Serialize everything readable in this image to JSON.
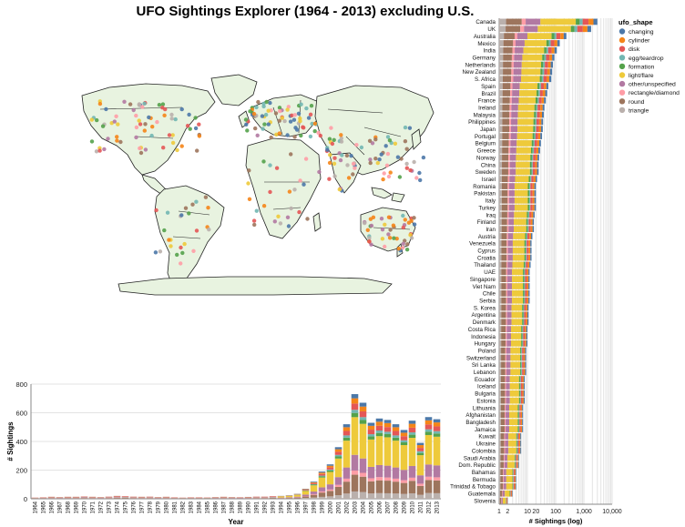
{
  "title": "UFO Sightings Explorer (1964 - 2013) excluding U.S.",
  "shape_colors": {
    "changing": "#4c78a8",
    "cylinder": "#f58518",
    "disk": "#e45756",
    "egg/teardrop": "#72b7b2",
    "formation": "#54a24b",
    "light/flare": "#eeca3b",
    "other/unspecified": "#b279a2",
    "rectangle/diamond": "#ff9da6",
    "round": "#9d755d",
    "triangle": "#bab0ac"
  },
  "map": {
    "land_color": "#e8f3e0",
    "border_color": "#222222"
  },
  "chart_data": [
    {
      "id": "by-year",
      "type": "bar",
      "stacked": true,
      "xlabel": "Year",
      "ylabel": "# Sightings",
      "ylim": [
        0,
        800
      ],
      "yticks": [
        "0",
        "200",
        "400",
        "600",
        "800"
      ],
      "categories": [
        "1964",
        "1965",
        "1966",
        "1967",
        "1968",
        "1969",
        "1970",
        "1971",
        "1972",
        "1973",
        "1974",
        "1975",
        "1976",
        "1977",
        "1978",
        "1979",
        "1980",
        "1981",
        "1982",
        "1983",
        "1984",
        "1985",
        "1986",
        "1987",
        "1988",
        "1989",
        "1990",
        "1991",
        "1992",
        "1993",
        "1994",
        "1995",
        "1996",
        "1997",
        "1998",
        "1999",
        "2000",
        "2001",
        "2002",
        "2003",
        "2004",
        "2005",
        "2006",
        "2007",
        "2008",
        "2009",
        "2010",
        "2011",
        "2012",
        "2013"
      ],
      "xticks": [
        "1964",
        "1965",
        "1966",
        "1967",
        "1968",
        "1969",
        "1970",
        "1971",
        "1972",
        "1973",
        "1974",
        "1975",
        "1976",
        "1977",
        "1978",
        "1979",
        "1980",
        "1981",
        "1982",
        "1983",
        "1984",
        "1985",
        "1986",
        "1987",
        "1988",
        "1989",
        "1990",
        "1991",
        "1992",
        "1993",
        "1994",
        "1995",
        "1996",
        "1997",
        "1998",
        "1999",
        "2000",
        "2001",
        "2002",
        "2003",
        "2004",
        "2005",
        "2006",
        "2007",
        "2008",
        "2009",
        "2010",
        "2011",
        "2012",
        "2013"
      ],
      "totals": [
        8,
        10,
        14,
        12,
        14,
        14,
        16,
        14,
        12,
        15,
        20,
        18,
        15,
        14,
        15,
        12,
        14,
        10,
        8,
        10,
        10,
        9,
        12,
        14,
        12,
        11,
        13,
        15,
        15,
        18,
        20,
        25,
        35,
        70,
        120,
        190,
        240,
        360,
        520,
        730,
        670,
        530,
        560,
        550,
        520,
        480,
        545,
        390,
        570,
        555
      ],
      "composition": {
        "triangle": 0.07,
        "round": 0.16,
        "rectangle/diamond": 0.04,
        "other/unspecified": 0.15,
        "light/flare": 0.36,
        "formation": 0.04,
        "egg/teardrop": 0.03,
        "disk": 0.06,
        "cylinder": 0.05,
        "changing": 0.04
      },
      "early_composition": {
        "triangle": 0.15,
        "round": 0.2,
        "rectangle/diamond": 0.05,
        "other/unspecified": 0.2,
        "light/flare": 0.05,
        "formation": 0.03,
        "egg/teardrop": 0.05,
        "disk": 0.22,
        "cylinder": 0.03,
        "changing": 0.02
      }
    },
    {
      "id": "by-country",
      "type": "bar",
      "orientation": "horizontal",
      "stacked": true,
      "xlabel": "# Sightings (log)",
      "xscale": "log",
      "xlim": [
        1,
        10000
      ],
      "xticks": [
        "1",
        "2",
        "10",
        "20",
        "100",
        "1,000",
        "10,000"
      ],
      "legend": {
        "title": "ufo_shape",
        "position": "right"
      },
      "categories": [
        "Canada",
        "UK",
        "Australia",
        "Mexico",
        "India",
        "Germany",
        "Netherlands",
        "New Zealand",
        "S. Africa",
        "Spain",
        "Brazil",
        "France",
        "Ireland",
        "Malaysia",
        "Philippines",
        "Japan",
        "Portugal",
        "Belgium",
        "Greece",
        "Norway",
        "China",
        "Sweden",
        "Israel",
        "Romania",
        "Pakistan",
        "Italy",
        "Turkey",
        "Iraq",
        "Finland",
        "Iran",
        "Austria",
        "Venezuela",
        "Cyprus",
        "Croatia",
        "Thailand",
        "UAE",
        "Singapore",
        "Viet Nam",
        "Chile",
        "Serbia",
        "S. Korea",
        "Argentina",
        "Denmark",
        "Costa Rica",
        "Indonesia",
        "Hungary",
        "Poland",
        "Switzerland",
        "Sri Lanka",
        "Lebanon",
        "Ecuador",
        "Iceland",
        "Bulgaria",
        "Estonia",
        "Lithuania",
        "Afghanistan",
        "Bangladesh",
        "Jamaica",
        "Kuwait",
        "Ukraine",
        "Colombia",
        "Saudi Arabia",
        "Dom. Republic",
        "Bahamas",
        "Bermuda",
        "Trinidad & Tobago",
        "Guatemala",
        "Slovenia"
      ],
      "values": [
        3000,
        1800,
        240,
        140,
        110,
        90,
        80,
        75,
        70,
        55,
        50,
        45,
        40,
        38,
        36,
        35,
        33,
        30,
        28,
        26,
        25,
        25,
        22,
        20,
        20,
        20,
        20,
        18,
        17,
        17,
        15,
        14,
        14,
        14,
        13,
        12,
        12,
        12,
        12,
        12,
        11,
        11,
        11,
        10,
        10,
        10,
        9,
        9,
        9,
        9,
        8,
        8,
        8,
        8,
        7,
        7,
        7,
        7,
        6,
        6,
        6,
        5,
        5,
        4,
        4,
        4,
        3,
        2
      ]
    }
  ]
}
